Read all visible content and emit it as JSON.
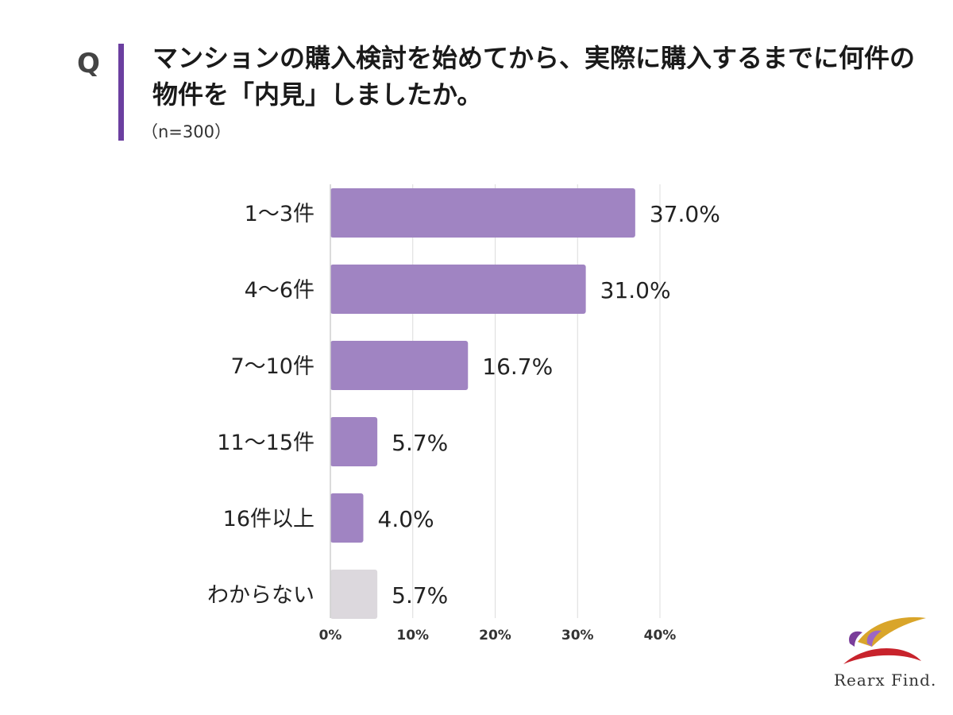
{
  "header": {
    "q_label": "Q",
    "question": "マンションの購入検討を始めてから、実際に購入するまでに何件の物件を「内見」しましたか。",
    "sample": "（n=300）"
  },
  "logo": {
    "text": "Rearx Find."
  },
  "chart_data": {
    "type": "bar",
    "orientation": "horizontal",
    "categories": [
      "1～3件",
      "4～6件",
      "7～10件",
      "11～15件",
      "16件以上",
      "わからない"
    ],
    "values": [
      37.0,
      31.0,
      16.7,
      5.7,
      4.0,
      5.7
    ],
    "value_labels": [
      "37.0%",
      "31.0%",
      "16.7%",
      "5.7%",
      "4.0%",
      "5.7%"
    ],
    "xticks": [
      "0%",
      "10%",
      "20%",
      "30%",
      "40%"
    ],
    "xlim": [
      0,
      40
    ],
    "grid": true,
    "colors": {
      "bar": "#a084c2",
      "bar_unknown": "#dcd8dd",
      "grid": "#dcdcdc",
      "accent": "#6b3fa0"
    }
  }
}
